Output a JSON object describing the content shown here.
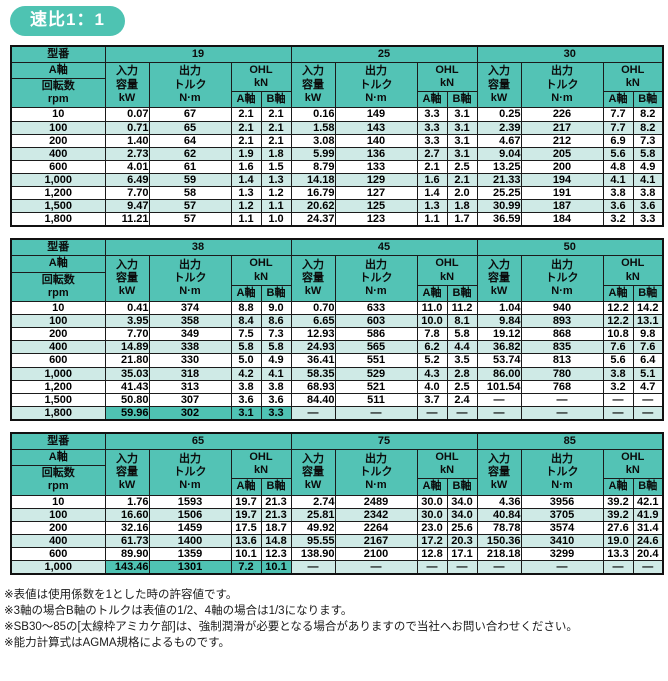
{
  "badge": {
    "label": "速比1：1"
  },
  "colors": {
    "teal_header": "#53c3b5",
    "teal_highlight": "#4fc2b3",
    "stripe_light": "#cfeae6",
    "badge_teal": "#4ec3b2"
  },
  "header_labels": {
    "model": "型番",
    "axis_top": "A軸",
    "speed": "回転数\nrpm",
    "input": "入力\n容量\nkW",
    "output": "出力\nトルク\nN·m",
    "ohl": "OHL\nkN",
    "a_axis": "A軸",
    "b_axis": "B軸"
  },
  "tables": [
    {
      "rpm": [
        "10",
        "100",
        "200",
        "400",
        "600",
        "1,000",
        "1,200",
        "1,500",
        "1,800"
      ],
      "stripe": [
        0,
        1,
        0,
        1,
        0,
        1,
        0,
        1,
        0
      ],
      "groups": [
        {
          "model": "19",
          "kw": [
            "0.07",
            "0.71",
            "1.40",
            "2.73",
            "4.01",
            "6.49",
            "7.70",
            "9.47",
            "11.21"
          ],
          "nm": [
            "67",
            "65",
            "64",
            "62",
            "61",
            "59",
            "58",
            "57",
            "57"
          ],
          "a": [
            "2.1",
            "2.1",
            "2.1",
            "1.9",
            "1.6",
            "1.4",
            "1.3",
            "1.2",
            "1.1"
          ],
          "b": [
            "2.1",
            "2.1",
            "2.1",
            "1.8",
            "1.5",
            "1.3",
            "1.2",
            "1.1",
            "1.0"
          ],
          "hl": []
        },
        {
          "model": "25",
          "kw": [
            "0.16",
            "1.58",
            "3.08",
            "5.99",
            "8.79",
            "14.18",
            "16.79",
            "20.62",
            "24.37"
          ],
          "nm": [
            "149",
            "143",
            "140",
            "136",
            "133",
            "129",
            "127",
            "125",
            "123"
          ],
          "a": [
            "3.3",
            "3.3",
            "3.3",
            "2.7",
            "2.1",
            "1.6",
            "1.4",
            "1.3",
            "1.1"
          ],
          "b": [
            "3.1",
            "3.1",
            "3.1",
            "3.1",
            "2.5",
            "2.1",
            "2.0",
            "1.8",
            "1.7"
          ],
          "hl": []
        },
        {
          "model": "30",
          "kw": [
            "0.25",
            "2.39",
            "4.67",
            "9.04",
            "13.25",
            "21.33",
            "25.25",
            "30.99",
            "36.59"
          ],
          "nm": [
            "226",
            "217",
            "212",
            "205",
            "200",
            "194",
            "191",
            "187",
            "184"
          ],
          "a": [
            "7.7",
            "7.7",
            "6.9",
            "5.6",
            "4.8",
            "4.1",
            "3.8",
            "3.6",
            "3.2"
          ],
          "b": [
            "8.2",
            "8.2",
            "7.3",
            "5.8",
            "4.9",
            "4.1",
            "3.8",
            "3.6",
            "3.3"
          ],
          "hl": [
            8
          ]
        }
      ]
    },
    {
      "rpm": [
        "10",
        "100",
        "200",
        "400",
        "600",
        "1,000",
        "1,200",
        "1,500",
        "1,800"
      ],
      "stripe": [
        0,
        1,
        0,
        1,
        0,
        1,
        0,
        0,
        1
      ],
      "groups": [
        {
          "model": "38",
          "kw": [
            "0.41",
            "3.95",
            "7.70",
            "14.89",
            "21.80",
            "35.03",
            "41.43",
            "50.80",
            "59.96"
          ],
          "nm": [
            "374",
            "358",
            "349",
            "338",
            "330",
            "318",
            "313",
            "307",
            "302"
          ],
          "a": [
            "8.8",
            "8.4",
            "7.5",
            "5.8",
            "5.0",
            "4.2",
            "3.8",
            "3.6",
            "3.1"
          ],
          "b": [
            "9.0",
            "8.6",
            "7.3",
            "5.8",
            "4.9",
            "4.1",
            "3.8",
            "3.6",
            "3.3"
          ],
          "hl": [
            7,
            8
          ]
        },
        {
          "model": "45",
          "kw": [
            "0.70",
            "6.65",
            "12.93",
            "24.93",
            "36.41",
            "58.35",
            "68.93",
            "84.40",
            "—"
          ],
          "nm": [
            "633",
            "603",
            "586",
            "565",
            "551",
            "529",
            "521",
            "511",
            "—"
          ],
          "a": [
            "11.0",
            "10.0",
            "7.8",
            "6.2",
            "5.2",
            "4.3",
            "4.0",
            "3.7",
            "—"
          ],
          "b": [
            "11.2",
            "8.1",
            "5.8",
            "4.4",
            "3.5",
            "2.8",
            "2.5",
            "2.4",
            "—"
          ],
          "hl": [
            6,
            7
          ]
        },
        {
          "model": "50",
          "kw": [
            "1.04",
            "9.84",
            "19.12",
            "36.82",
            "53.74",
            "86.00",
            "101.54",
            "—",
            "—"
          ],
          "nm": [
            "940",
            "893",
            "868",
            "835",
            "813",
            "780",
            "768",
            "—",
            "—"
          ],
          "a": [
            "12.2",
            "12.2",
            "10.8",
            "7.6",
            "5.6",
            "3.8",
            "3.2",
            "—",
            "—"
          ],
          "b": [
            "14.2",
            "13.1",
            "9.8",
            "7.6",
            "6.4",
            "5.1",
            "4.7",
            "—",
            "—"
          ],
          "hl": [
            6
          ]
        }
      ]
    },
    {
      "rpm": [
        "10",
        "100",
        "200",
        "400",
        "600",
        "1,000"
      ],
      "stripe": [
        0,
        1,
        0,
        1,
        0,
        1
      ],
      "groups": [
        {
          "model": "65",
          "kw": [
            "1.76",
            "16.60",
            "32.16",
            "61.73",
            "89.90",
            "143.46"
          ],
          "nm": [
            "1593",
            "1506",
            "1459",
            "1400",
            "1359",
            "1301"
          ],
          "a": [
            "19.7",
            "19.7",
            "17.5",
            "13.6",
            "10.1",
            "7.2"
          ],
          "b": [
            "21.3",
            "21.3",
            "18.7",
            "14.8",
            "12.3",
            "10.1"
          ],
          "hl": [
            5
          ]
        },
        {
          "model": "75",
          "kw": [
            "2.74",
            "25.81",
            "49.92",
            "95.55",
            "138.90",
            "—"
          ],
          "nm": [
            "2489",
            "2342",
            "2264",
            "2167",
            "2100",
            "—"
          ],
          "a": [
            "30.0",
            "30.0",
            "23.0",
            "17.2",
            "12.8",
            "—"
          ],
          "b": [
            "34.0",
            "34.0",
            "25.6",
            "20.3",
            "17.1",
            "—"
          ],
          "hl": [
            4
          ]
        },
        {
          "model": "85",
          "kw": [
            "4.36",
            "40.84",
            "78.78",
            "150.36",
            "218.18",
            "—"
          ],
          "nm": [
            "3956",
            "3705",
            "3574",
            "3410",
            "3299",
            "—"
          ],
          "a": [
            "39.2",
            "39.2",
            "27.6",
            "19.0",
            "13.3",
            "—"
          ],
          "b": [
            "42.1",
            "41.9",
            "31.4",
            "24.6",
            "20.4",
            "—"
          ],
          "hl": [
            4
          ]
        }
      ]
    }
  ],
  "notes": [
    "※表値は使用係数を1とした時の許容値です。",
    "※3軸の場合B軸のトルクは表値の1/2、4軸の場合は1/3になります。",
    "※SB30〜85の[太線枠アミカケ部]は、強制潤滑が必要となる場合がありますので当社へお問い合わせください。",
    "※能力計算式はAGMA規格によるものです。"
  ]
}
